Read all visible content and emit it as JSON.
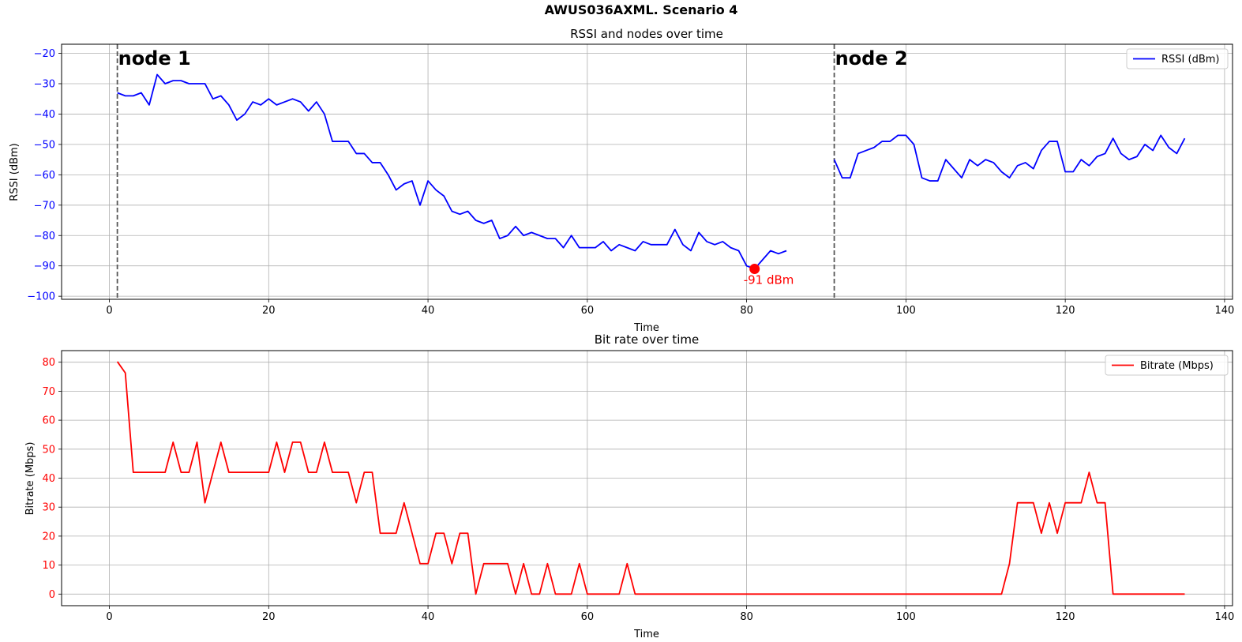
{
  "figure": {
    "title": "AWUS036AXML. Scenario 4"
  },
  "chart_data": [
    {
      "type": "line",
      "title": "RSSI and nodes over time",
      "xlabel": "Time",
      "ylabel": "RSSI (dBm)",
      "xlim": [
        -6,
        141
      ],
      "ylim": [
        -101,
        -17
      ],
      "xticks": [
        0,
        20,
        40,
        60,
        80,
        100,
        120,
        140
      ],
      "yticks": [
        -100,
        -90,
        -80,
        -70,
        -60,
        -50,
        -40,
        -30,
        -20
      ],
      "grid": true,
      "legend_position": "top-right",
      "label_color": "#0000ff",
      "series": [
        {
          "name": "RSSI (dBm)",
          "color": "#0000ff",
          "segments": [
            {
              "x": [
                1,
                2,
                3,
                4,
                5,
                6,
                7,
                8,
                9,
                10,
                11,
                12,
                13,
                14,
                15,
                16,
                17,
                18,
                19,
                20,
                21,
                22,
                23,
                24,
                25,
                26,
                27,
                28,
                29,
                30,
                31,
                32,
                33,
                34,
                35,
                36,
                37,
                38,
                39,
                40,
                41,
                42,
                43,
                44,
                45,
                46,
                47,
                48,
                49,
                50,
                51,
                52,
                53,
                54,
                55,
                56,
                57,
                58,
                59,
                60,
                61,
                62,
                63,
                64,
                65,
                66,
                67,
                68,
                69,
                70,
                71,
                72,
                73,
                74,
                75,
                76,
                77,
                78,
                79,
                80,
                81,
                82,
                83,
                84,
                85
              ],
              "y": [
                -33,
                -34,
                -34,
                -33,
                -37,
                -27,
                -30,
                -29,
                -29,
                -30,
                -30,
                -30,
                -35,
                -34,
                -37,
                -42,
                -40,
                -36,
                -37,
                -35,
                -37,
                -36,
                -35,
                -36,
                -39,
                -36,
                -40,
                -49,
                -49,
                -49,
                -53,
                -53,
                -56,
                -56,
                -60,
                -65,
                -63,
                -62,
                -70,
                -62,
                -65,
                -67,
                -72,
                -73,
                -72,
                -75,
                -76,
                -75,
                -81,
                -80,
                -77,
                -80,
                -79,
                -80,
                -81,
                -81,
                -84,
                -80,
                -84,
                -84,
                -84,
                -82,
                -85,
                -83,
                -84,
                -85,
                -82,
                -83,
                -83,
                -83,
                -78,
                -83,
                -85,
                -79,
                -82,
                -83,
                -82,
                -84,
                -85,
                -90,
                -91,
                -88,
                -85,
                -86,
                -85
              ]
            },
            {
              "x": [
                91,
                92,
                93,
                94,
                95,
                96,
                97,
                98,
                99,
                100,
                101,
                102,
                103,
                104,
                105,
                106,
                107,
                108,
                109,
                110,
                111,
                112,
                113,
                114,
                115,
                116,
                117,
                118,
                119,
                120,
                121,
                122,
                123,
                124,
                125,
                126,
                127,
                128,
                129,
                130,
                131,
                132,
                133,
                134,
                135
              ],
              "y": [
                -55,
                -61,
                -61,
                -53,
                -52,
                -51,
                -49,
                -49,
                -47,
                -47,
                -50,
                -61,
                -62,
                -62,
                -55,
                -58,
                -61,
                -55,
                -57,
                -55,
                -56,
                -59,
                -61,
                -57,
                -56,
                -58,
                -52,
                -49,
                -49,
                -59,
                -59,
                -55,
                -57,
                -54,
                -53,
                -48,
                -53,
                -55,
                -54,
                -50,
                -52,
                -47,
                -51,
                -53,
                -48
              ]
            }
          ]
        }
      ],
      "vlines": [
        {
          "x": 1,
          "label": "node 1",
          "color": "#555555"
        },
        {
          "x": 91,
          "label": "node 2",
          "color": "#555555"
        }
      ],
      "annotation": {
        "x": 81,
        "y": -91,
        "text": "-91 dBm",
        "color": "#ff0000"
      }
    },
    {
      "type": "line",
      "title": "Bit rate over time",
      "xlabel": "Time",
      "ylabel": "Bitrate (Mbps)",
      "xlim": [
        -6,
        141
      ],
      "ylim": [
        -4,
        84
      ],
      "xticks": [
        0,
        20,
        40,
        60,
        80,
        100,
        120,
        140
      ],
      "yticks": [
        0,
        10,
        20,
        30,
        40,
        50,
        60,
        70,
        80
      ],
      "grid": true,
      "legend_position": "top-right",
      "label_color": "#ff0000",
      "series": [
        {
          "name": "Bitrate (Mbps)",
          "color": "#ff0000",
          "segments": [
            {
              "x": [
                1,
                2,
                3,
                4,
                5,
                6,
                7,
                8,
                9,
                10,
                11,
                12,
                13,
                14,
                15,
                16,
                17,
                18,
                19,
                20,
                21,
                22,
                23,
                24,
                25,
                26,
                27,
                28,
                29,
                30,
                31,
                32,
                33,
                34,
                35,
                36,
                37,
                38,
                39,
                40,
                41,
                42,
                43,
                44,
                45,
                46,
                47,
                48,
                49,
                50,
                51,
                52,
                53,
                54,
                55,
                56,
                57,
                58,
                59,
                60,
                61,
                62,
                63,
                64,
                65,
                66,
                67,
                68,
                69,
                70,
                71,
                72,
                73,
                74,
                75,
                76,
                77,
                78,
                79,
                80,
                81,
                82,
                83,
                84,
                85,
                86,
                87,
                88,
                89,
                90,
                91,
                92,
                93,
                94,
                95,
                96,
                97,
                98,
                99,
                100,
                101,
                102,
                103,
                104,
                105,
                106,
                107,
                108,
                109,
                110,
                111,
                112,
                113,
                114,
                115,
                116,
                117,
                118,
                119,
                120,
                121,
                122,
                123,
                124,
                125,
                126,
                127,
                128,
                129,
                130,
                131,
                132,
                133,
                134,
                135
              ],
              "y": [
                80.2,
                76.3,
                42,
                42,
                42,
                42,
                42,
                52.4,
                42,
                42,
                52.4,
                31.5,
                42,
                52.4,
                42,
                42,
                42,
                42,
                42,
                42,
                52.4,
                42,
                52.4,
                52.4,
                42,
                42,
                52.4,
                42,
                42,
                42,
                31.5,
                42,
                42,
                21,
                21,
                21,
                31.5,
                21,
                10.5,
                10.5,
                21,
                21,
                10.5,
                21,
                21,
                0,
                10.5,
                10.5,
                10.5,
                10.5,
                0,
                10.5,
                0,
                0,
                10.5,
                0,
                0,
                0,
                10.5,
                0,
                0,
                0,
                0,
                0,
                10.5,
                0,
                0,
                0,
                0,
                0,
                0,
                0,
                0,
                0,
                0,
                0,
                0,
                0,
                0,
                0,
                0,
                0,
                0,
                0,
                0,
                0,
                0,
                0,
                0,
                0,
                0,
                0,
                0,
                0,
                0,
                0,
                0,
                0,
                0,
                0,
                0,
                0,
                0,
                0,
                0,
                0,
                0,
                0,
                0,
                0,
                0,
                0,
                10.5,
                31.5,
                31.5,
                31.5,
                21,
                31.5,
                21,
                31.5,
                31.5,
                31.5,
                42,
                31.5,
                31.5,
                0,
                0,
                0,
                0,
                0,
                0,
                0,
                0,
                0,
                0
              ]
            }
          ]
        }
      ]
    }
  ]
}
